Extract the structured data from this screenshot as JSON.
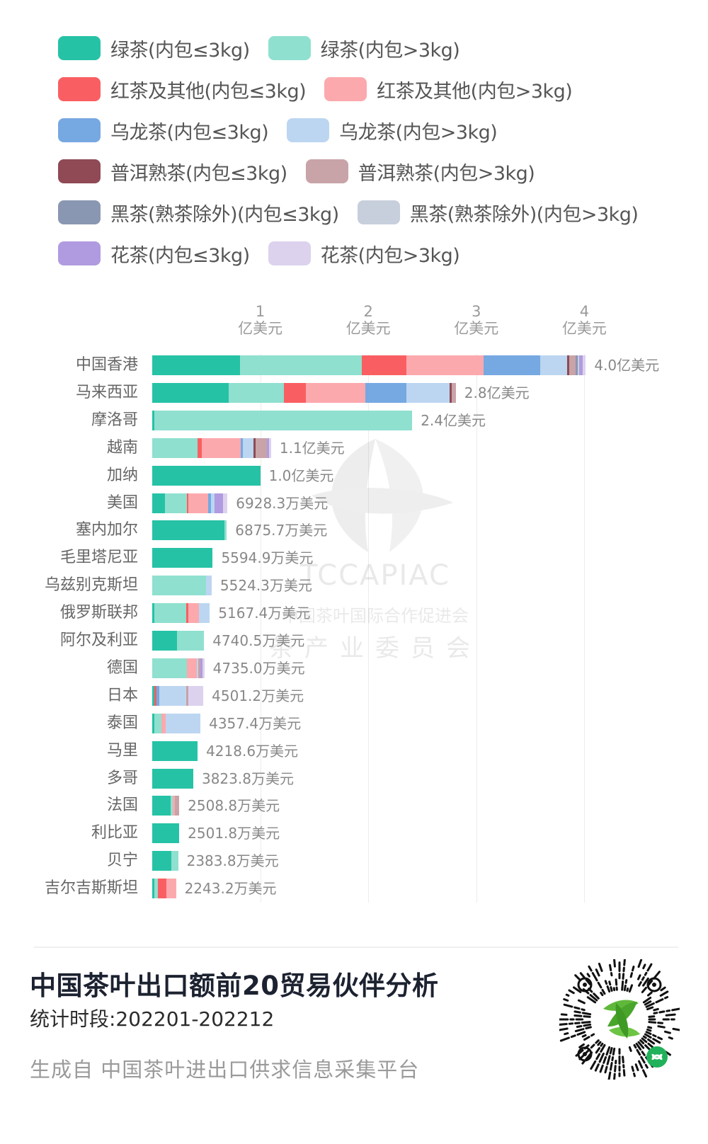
{
  "legend": {
    "rows": [
      [
        {
          "label": "绿茶(内包≤3kg)",
          "color": "#26c2a6"
        },
        {
          "label": "绿茶(内包>3kg)",
          "color": "#8fe0cf"
        }
      ],
      [
        {
          "label": "红茶及其他(内包≤3kg)",
          "color": "#f95f62"
        },
        {
          "label": "红茶及其他(内包>3kg)",
          "color": "#fca9ae"
        }
      ],
      [
        {
          "label": "乌龙茶(内包≤3kg)",
          "color": "#76a8e2"
        },
        {
          "label": "乌龙茶(内包>3kg)",
          "color": "#bcd6f1"
        }
      ],
      [
        {
          "label": "普洱熟茶(内包≤3kg)",
          "color": "#8f4a55"
        },
        {
          "label": "普洱熟茶(内包>3kg)",
          "color": "#c8a3a8"
        }
      ],
      [
        {
          "label": "黑茶(熟茶除外)(内包≤3kg)",
          "color": "#8a97b2"
        },
        {
          "label": "黑茶(熟茶除外)(内包>3kg)",
          "color": "#c7cfdc"
        }
      ],
      [
        {
          "label": "花茶(内包≤3kg)",
          "color": "#b09be0"
        },
        {
          "label": "花茶(内包>3kg)",
          "color": "#dcd2ee"
        }
      ]
    ]
  },
  "axis": {
    "ticks": [
      {
        "value": "1",
        "unit": "亿美元"
      },
      {
        "value": "2",
        "unit": "亿美元"
      },
      {
        "value": "3",
        "unit": "亿美元"
      },
      {
        "value": "4",
        "unit": "亿美元"
      }
    ]
  },
  "watermark": {
    "text1": "TCCAPIAC",
    "text2": "中国茶叶国际合作促进会",
    "text3": "茶产业委员会"
  },
  "footer": {
    "title": "中国茶叶出口额前20贸易伙伴分析",
    "period": "统计时段:202201-202212",
    "source": "生成自 中国茶叶进出口供求信息采集平台"
  },
  "chart_data": {
    "type": "bar",
    "orientation": "horizontal",
    "stacked": true,
    "title": "中国茶叶出口额前20贸易伙伴分析",
    "subtitle": "统计时段:202201-202212",
    "xlabel": "亿美元",
    "ylabel": "",
    "xlim": [
      0,
      4
    ],
    "xticks": [
      1,
      2,
      3,
      4
    ],
    "grid": true,
    "legend_position": "top",
    "series_names": [
      "绿茶(内包≤3kg)",
      "绿茶(内包>3kg)",
      "红茶及其他(内包≤3kg)",
      "红茶及其他(内包>3kg)",
      "乌龙茶(内包≤3kg)",
      "乌龙茶(内包>3kg)",
      "普洱熟茶(内包≤3kg)",
      "普洱熟茶(内包>3kg)",
      "黑茶(熟茶除外)(内包≤3kg)",
      "黑茶(熟茶除外)(内包>3kg)",
      "花茶(内包≤3kg)",
      "花茶(内包>3kg)"
    ],
    "categories": [
      "中国香港",
      "马来西亚",
      "摩洛哥",
      "越南",
      "加纳",
      "美国",
      "塞内加尔",
      "毛里塔尼亚",
      "乌兹别克斯坦",
      "俄罗斯联邦",
      "阿尔及利亚",
      "德国",
      "日本",
      "泰国",
      "马里",
      "多哥",
      "法国",
      "利比亚",
      "贝宁",
      "吉尔吉斯斯坦"
    ],
    "totals_label": [
      "4.0亿美元",
      "2.8亿美元",
      "2.4亿美元",
      "1.1亿美元",
      "1.0亿美元",
      "6928.3万美元",
      "6875.7万美元",
      "5594.9万美元",
      "5524.3万美元",
      "5167.4万美元",
      "4740.5万美元",
      "4735.0万美元",
      "4501.2万美元",
      "4357.4万美元",
      "4218.6万美元",
      "3823.8万美元",
      "2508.8万美元",
      "2501.8万美元",
      "2383.8万美元",
      "2243.2万美元"
    ],
    "totals": [
      4.0,
      2.8,
      2.4,
      1.1,
      1.0,
      0.6928,
      0.6876,
      0.5595,
      0.5524,
      0.5167,
      0.4741,
      0.4735,
      0.4501,
      0.4357,
      0.4219,
      0.3824,
      0.2509,
      0.2502,
      0.2384,
      0.2243
    ],
    "segments": [
      [
        0.81,
        1.13,
        0.41,
        0.72,
        0.52,
        0.25,
        0.02,
        0.06,
        0.01,
        0.01,
        0.03,
        0.03
      ],
      [
        0.71,
        0.51,
        0.2,
        0.55,
        0.38,
        0.4,
        0.02,
        0.04,
        0.0,
        0.0,
        0.0,
        0.0
      ],
      [
        0.01,
        2.39,
        0.0,
        0.0,
        0.0,
        0.0,
        0.0,
        0.0,
        0.0,
        0.0,
        0.0,
        0.0
      ],
      [
        0.0,
        0.42,
        0.04,
        0.36,
        0.02,
        0.1,
        0.02,
        0.1,
        0.0,
        0.0,
        0.02,
        0.02
      ],
      [
        1.0,
        0.0,
        0.0,
        0.0,
        0.0,
        0.0,
        0.0,
        0.0,
        0.0,
        0.0,
        0.0,
        0.0
      ],
      [
        0.12,
        0.2,
        0.01,
        0.18,
        0.03,
        0.03,
        0.0,
        0.0,
        0.0,
        0.0,
        0.08,
        0.04
      ],
      [
        0.67,
        0.02,
        0.0,
        0.0,
        0.0,
        0.0,
        0.0,
        0.0,
        0.0,
        0.0,
        0.0,
        0.0
      ],
      [
        0.56,
        0.0,
        0.0,
        0.0,
        0.0,
        0.0,
        0.0,
        0.0,
        0.0,
        0.0,
        0.0,
        0.0
      ],
      [
        0.0,
        0.5,
        0.0,
        0.0,
        0.0,
        0.05,
        0.0,
        0.0,
        0.0,
        0.0,
        0.0,
        0.0
      ],
      [
        0.01,
        0.3,
        0.01,
        0.1,
        0.0,
        0.1,
        0.0,
        0.0,
        0.0,
        0.0,
        0.0,
        0.0
      ],
      [
        0.23,
        0.25,
        0.0,
        0.0,
        0.0,
        0.0,
        0.0,
        0.0,
        0.0,
        0.0,
        0.0,
        0.0
      ],
      [
        0.0,
        0.32,
        0.0,
        0.09,
        0.0,
        0.01,
        0.0,
        0.02,
        0.0,
        0.0,
        0.01,
        0.02
      ],
      [
        0.01,
        0.0,
        0.02,
        0.0,
        0.03,
        0.25,
        0.0,
        0.01,
        0.0,
        0.0,
        0.0,
        0.14
      ],
      [
        0.01,
        0.07,
        0.0,
        0.04,
        0.0,
        0.32,
        0.0,
        0.0,
        0.0,
        0.0,
        0.0,
        0.0
      ],
      [
        0.42,
        0.0,
        0.0,
        0.0,
        0.0,
        0.0,
        0.0,
        0.0,
        0.0,
        0.0,
        0.0,
        0.0
      ],
      [
        0.38,
        0.0,
        0.0,
        0.0,
        0.0,
        0.0,
        0.0,
        0.0,
        0.0,
        0.0,
        0.0,
        0.0
      ],
      [
        0.17,
        0.02,
        0.0,
        0.02,
        0.0,
        0.0,
        0.0,
        0.04,
        0.0,
        0.0,
        0.0,
        0.0
      ],
      [
        0.25,
        0.0,
        0.0,
        0.0,
        0.0,
        0.0,
        0.0,
        0.0,
        0.0,
        0.0,
        0.0,
        0.0
      ],
      [
        0.18,
        0.06,
        0.0,
        0.0,
        0.0,
        0.0,
        0.0,
        0.0,
        0.0,
        0.0,
        0.0,
        0.0
      ],
      [
        0.02,
        0.03,
        0.08,
        0.09,
        0.0,
        0.0,
        0.0,
        0.0,
        0.0,
        0.0,
        0.0,
        0.0
      ]
    ],
    "colors": [
      "#26c2a6",
      "#8fe0cf",
      "#f95f62",
      "#fca9ae",
      "#76a8e2",
      "#bcd6f1",
      "#8f4a55",
      "#c8a3a8",
      "#8a97b2",
      "#c7cfdc",
      "#b09be0",
      "#dcd2ee"
    ]
  }
}
